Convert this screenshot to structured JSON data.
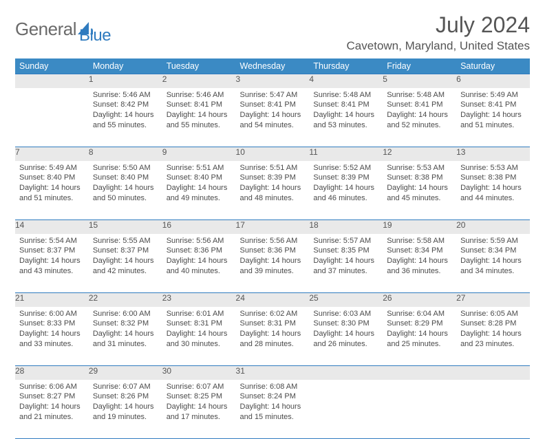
{
  "brand": {
    "part1": "General",
    "part2": "Blue"
  },
  "title": "July 2024",
  "location": "Cavetown, Maryland, United States",
  "columns": [
    "Sunday",
    "Monday",
    "Tuesday",
    "Wednesday",
    "Thursday",
    "Friday",
    "Saturday"
  ],
  "header_bg": "#3b8ac4",
  "daynum_bg": "#e9e9e9",
  "border_color": "#2f7bbf",
  "weeks": [
    {
      "nums": [
        "",
        "1",
        "2",
        "3",
        "4",
        "5",
        "6"
      ],
      "cells": [
        null,
        {
          "sunrise": "Sunrise: 5:46 AM",
          "sunset": "Sunset: 8:42 PM",
          "day1": "Daylight: 14 hours",
          "day2": "and 55 minutes."
        },
        {
          "sunrise": "Sunrise: 5:46 AM",
          "sunset": "Sunset: 8:41 PM",
          "day1": "Daylight: 14 hours",
          "day2": "and 55 minutes."
        },
        {
          "sunrise": "Sunrise: 5:47 AM",
          "sunset": "Sunset: 8:41 PM",
          "day1": "Daylight: 14 hours",
          "day2": "and 54 minutes."
        },
        {
          "sunrise": "Sunrise: 5:48 AM",
          "sunset": "Sunset: 8:41 PM",
          "day1": "Daylight: 14 hours",
          "day2": "and 53 minutes."
        },
        {
          "sunrise": "Sunrise: 5:48 AM",
          "sunset": "Sunset: 8:41 PM",
          "day1": "Daylight: 14 hours",
          "day2": "and 52 minutes."
        },
        {
          "sunrise": "Sunrise: 5:49 AM",
          "sunset": "Sunset: 8:41 PM",
          "day1": "Daylight: 14 hours",
          "day2": "and 51 minutes."
        }
      ]
    },
    {
      "nums": [
        "7",
        "8",
        "9",
        "10",
        "11",
        "12",
        "13"
      ],
      "cells": [
        {
          "sunrise": "Sunrise: 5:49 AM",
          "sunset": "Sunset: 8:40 PM",
          "day1": "Daylight: 14 hours",
          "day2": "and 51 minutes."
        },
        {
          "sunrise": "Sunrise: 5:50 AM",
          "sunset": "Sunset: 8:40 PM",
          "day1": "Daylight: 14 hours",
          "day2": "and 50 minutes."
        },
        {
          "sunrise": "Sunrise: 5:51 AM",
          "sunset": "Sunset: 8:40 PM",
          "day1": "Daylight: 14 hours",
          "day2": "and 49 minutes."
        },
        {
          "sunrise": "Sunrise: 5:51 AM",
          "sunset": "Sunset: 8:39 PM",
          "day1": "Daylight: 14 hours",
          "day2": "and 48 minutes."
        },
        {
          "sunrise": "Sunrise: 5:52 AM",
          "sunset": "Sunset: 8:39 PM",
          "day1": "Daylight: 14 hours",
          "day2": "and 46 minutes."
        },
        {
          "sunrise": "Sunrise: 5:53 AM",
          "sunset": "Sunset: 8:38 PM",
          "day1": "Daylight: 14 hours",
          "day2": "and 45 minutes."
        },
        {
          "sunrise": "Sunrise: 5:53 AM",
          "sunset": "Sunset: 8:38 PM",
          "day1": "Daylight: 14 hours",
          "day2": "and 44 minutes."
        }
      ]
    },
    {
      "nums": [
        "14",
        "15",
        "16",
        "17",
        "18",
        "19",
        "20"
      ],
      "cells": [
        {
          "sunrise": "Sunrise: 5:54 AM",
          "sunset": "Sunset: 8:37 PM",
          "day1": "Daylight: 14 hours",
          "day2": "and 43 minutes."
        },
        {
          "sunrise": "Sunrise: 5:55 AM",
          "sunset": "Sunset: 8:37 PM",
          "day1": "Daylight: 14 hours",
          "day2": "and 42 minutes."
        },
        {
          "sunrise": "Sunrise: 5:56 AM",
          "sunset": "Sunset: 8:36 PM",
          "day1": "Daylight: 14 hours",
          "day2": "and 40 minutes."
        },
        {
          "sunrise": "Sunrise: 5:56 AM",
          "sunset": "Sunset: 8:36 PM",
          "day1": "Daylight: 14 hours",
          "day2": "and 39 minutes."
        },
        {
          "sunrise": "Sunrise: 5:57 AM",
          "sunset": "Sunset: 8:35 PM",
          "day1": "Daylight: 14 hours",
          "day2": "and 37 minutes."
        },
        {
          "sunrise": "Sunrise: 5:58 AM",
          "sunset": "Sunset: 8:34 PM",
          "day1": "Daylight: 14 hours",
          "day2": "and 36 minutes."
        },
        {
          "sunrise": "Sunrise: 5:59 AM",
          "sunset": "Sunset: 8:34 PM",
          "day1": "Daylight: 14 hours",
          "day2": "and 34 minutes."
        }
      ]
    },
    {
      "nums": [
        "21",
        "22",
        "23",
        "24",
        "25",
        "26",
        "27"
      ],
      "cells": [
        {
          "sunrise": "Sunrise: 6:00 AM",
          "sunset": "Sunset: 8:33 PM",
          "day1": "Daylight: 14 hours",
          "day2": "and 33 minutes."
        },
        {
          "sunrise": "Sunrise: 6:00 AM",
          "sunset": "Sunset: 8:32 PM",
          "day1": "Daylight: 14 hours",
          "day2": "and 31 minutes."
        },
        {
          "sunrise": "Sunrise: 6:01 AM",
          "sunset": "Sunset: 8:31 PM",
          "day1": "Daylight: 14 hours",
          "day2": "and 30 minutes."
        },
        {
          "sunrise": "Sunrise: 6:02 AM",
          "sunset": "Sunset: 8:31 PM",
          "day1": "Daylight: 14 hours",
          "day2": "and 28 minutes."
        },
        {
          "sunrise": "Sunrise: 6:03 AM",
          "sunset": "Sunset: 8:30 PM",
          "day1": "Daylight: 14 hours",
          "day2": "and 26 minutes."
        },
        {
          "sunrise": "Sunrise: 6:04 AM",
          "sunset": "Sunset: 8:29 PM",
          "day1": "Daylight: 14 hours",
          "day2": "and 25 minutes."
        },
        {
          "sunrise": "Sunrise: 6:05 AM",
          "sunset": "Sunset: 8:28 PM",
          "day1": "Daylight: 14 hours",
          "day2": "and 23 minutes."
        }
      ]
    },
    {
      "nums": [
        "28",
        "29",
        "30",
        "31",
        "",
        "",
        ""
      ],
      "cells": [
        {
          "sunrise": "Sunrise: 6:06 AM",
          "sunset": "Sunset: 8:27 PM",
          "day1": "Daylight: 14 hours",
          "day2": "and 21 minutes."
        },
        {
          "sunrise": "Sunrise: 6:07 AM",
          "sunset": "Sunset: 8:26 PM",
          "day1": "Daylight: 14 hours",
          "day2": "and 19 minutes."
        },
        {
          "sunrise": "Sunrise: 6:07 AM",
          "sunset": "Sunset: 8:25 PM",
          "day1": "Daylight: 14 hours",
          "day2": "and 17 minutes."
        },
        {
          "sunrise": "Sunrise: 6:08 AM",
          "sunset": "Sunset: 8:24 PM",
          "day1": "Daylight: 14 hours",
          "day2": "and 15 minutes."
        },
        null,
        null,
        null
      ]
    }
  ]
}
